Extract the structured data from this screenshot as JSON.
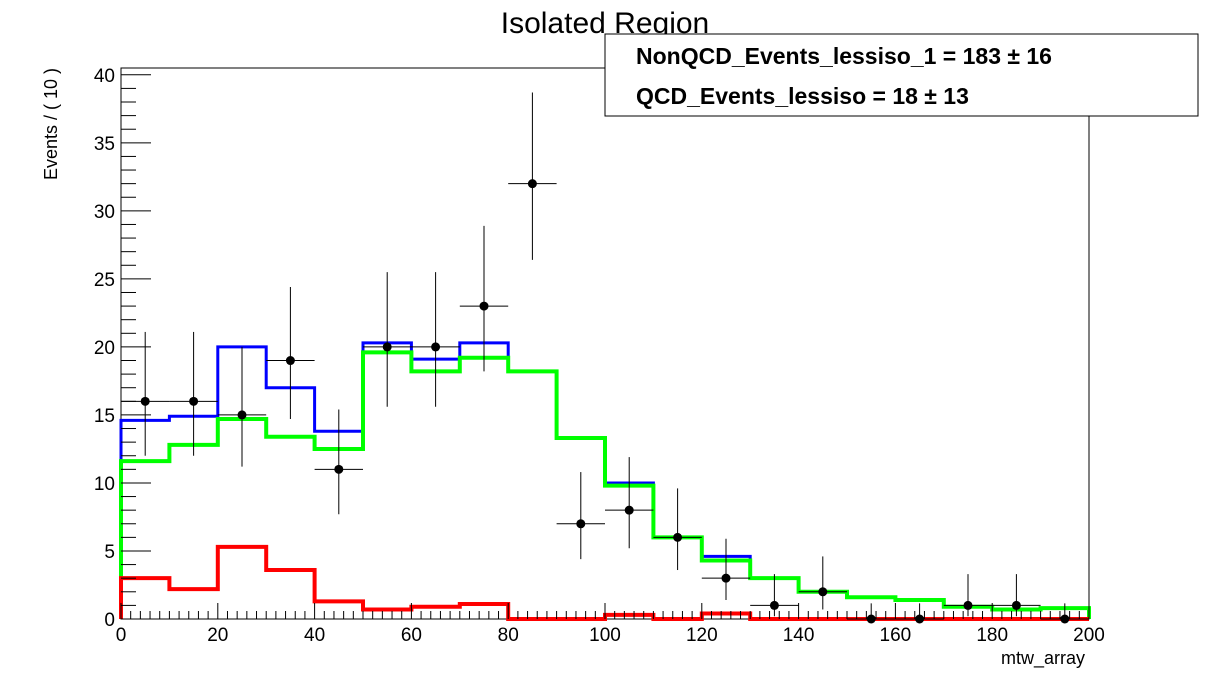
{
  "chart_data": {
    "type": "line",
    "title": "Isolated Region",
    "xlabel": "mtw_array",
    "ylabel": "Events / ( 10 )",
    "xlim": [
      0,
      200
    ],
    "ylim": [
      0,
      40.5
    ],
    "xticks": [
      "0",
      "20",
      "40",
      "60",
      "80",
      "100",
      "120",
      "140",
      "160",
      "180",
      "200"
    ],
    "yticks": [
      "0",
      "5",
      "10",
      "15",
      "20",
      "25",
      "30",
      "35",
      "40"
    ],
    "bin_edges": [
      0,
      10,
      20,
      30,
      40,
      50,
      60,
      70,
      80,
      90,
      100,
      110,
      120,
      130,
      140,
      150,
      160,
      170,
      180,
      190,
      200
    ],
    "series": [
      {
        "kind": "step",
        "color": "#0000ff",
        "values": [
          14.6,
          14.9,
          20.0,
          17.0,
          13.8,
          20.3,
          19.1,
          20.3,
          18.2,
          13.3,
          10.0,
          6.0,
          4.6,
          3.0,
          2.0,
          1.6,
          1.4,
          0.9,
          0.7,
          0.8
        ]
      },
      {
        "kind": "step",
        "color": "#00ff00",
        "values": [
          11.6,
          12.8,
          14.7,
          13.4,
          12.5,
          19.6,
          18.2,
          19.2,
          18.2,
          13.3,
          9.8,
          6.0,
          4.3,
          3.0,
          2.0,
          1.6,
          1.4,
          0.9,
          0.7,
          0.8
        ]
      },
      {
        "kind": "step",
        "color": "#ff0000",
        "values": [
          3.0,
          2.2,
          5.3,
          3.6,
          1.3,
          0.7,
          0.9,
          1.1,
          0.0,
          0.0,
          0.3,
          0.0,
          0.4,
          0.0,
          0.0,
          0.0,
          0.0,
          0.0,
          0.0,
          0.0
        ]
      },
      {
        "kind": "points",
        "color": "#000000",
        "x": [
          5,
          15,
          25,
          35,
          45,
          55,
          65,
          75,
          85,
          95,
          105,
          115,
          125,
          135,
          145,
          155,
          165,
          175,
          185,
          195
        ],
        "values": [
          16,
          16,
          15,
          19,
          11,
          20,
          20,
          23,
          32,
          7,
          8,
          6,
          3,
          1,
          2,
          0,
          0,
          1,
          1,
          0
        ],
        "err_up": [
          5.1,
          5.1,
          5.0,
          5.4,
          4.4,
          5.5,
          5.5,
          5.9,
          6.7,
          3.8,
          3.9,
          3.6,
          2.9,
          2.3,
          2.6,
          1.15,
          1.15,
          2.3,
          2.3,
          1.15
        ],
        "err_down": [
          4.0,
          4.0,
          3.8,
          4.3,
          3.3,
          4.4,
          4.4,
          4.8,
          5.6,
          2.6,
          2.8,
          2.4,
          1.6,
          0.8,
          1.3,
          0.0,
          0.0,
          0.8,
          0.8,
          0.0
        ]
      }
    ],
    "legend_lines": [
      "NonQCD_Events_lessiso_1 =  183 ± 16",
      "QCD_Events_lessiso =  18 ± 13"
    ],
    "legend_position": "top-right",
    "grid": false
  }
}
